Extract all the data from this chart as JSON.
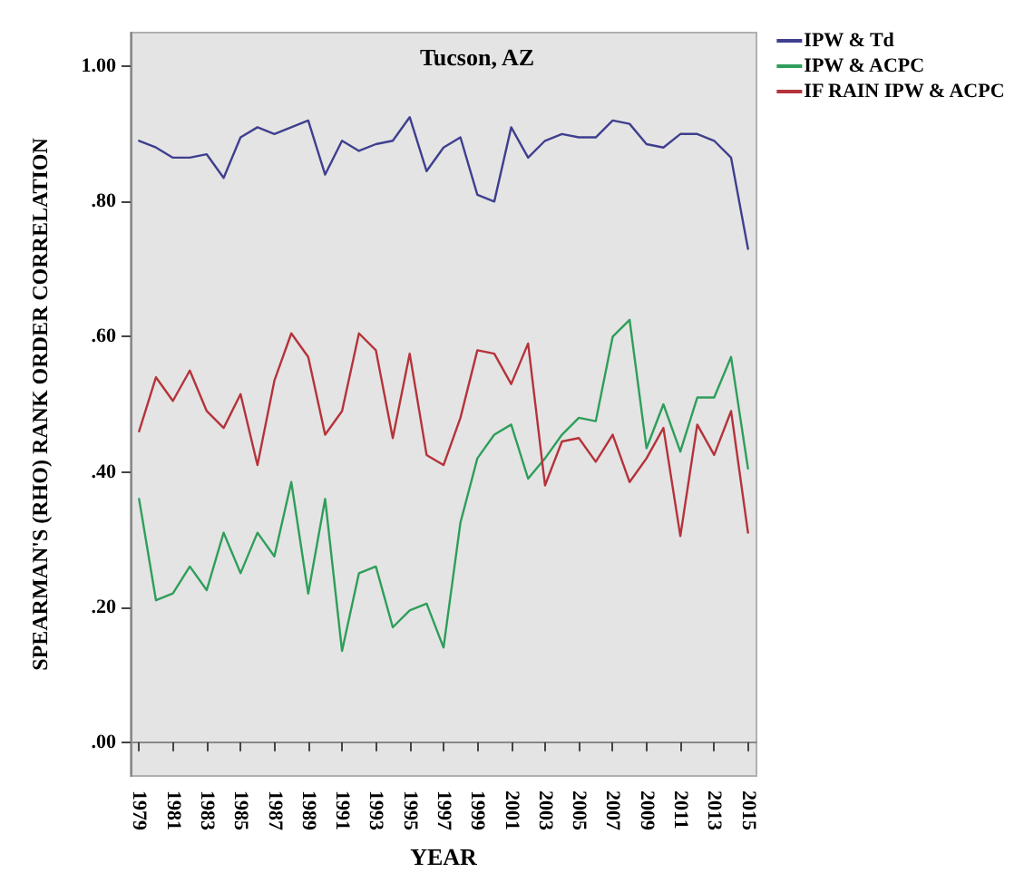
{
  "chart_data": {
    "type": "line",
    "title": "Tucson, AZ",
    "xlabel": "YEAR",
    "ylabel": "SPEARMAN'S (RHO) RANK ORDER CORRELATION",
    "categories": [
      "1979",
      null,
      "1981",
      null,
      "1983",
      null,
      "1985",
      null,
      "1987",
      null,
      "1989",
      null,
      "1991",
      null,
      "1993",
      null,
      "1995",
      null,
      "1997",
      null,
      "1999",
      null,
      "2001",
      null,
      "2003",
      null,
      "2005",
      null,
      "2007",
      null,
      "2009",
      null,
      "2011",
      null,
      "2013",
      null,
      "2015"
    ],
    "series": [
      {
        "name": "IPW & Td",
        "color": "#3f3f8f",
        "values": [
          0.89,
          0.88,
          0.865,
          0.865,
          0.87,
          0.835,
          0.895,
          0.91,
          0.9,
          0.91,
          0.92,
          0.84,
          0.89,
          0.875,
          0.885,
          0.89,
          0.925,
          0.845,
          0.88,
          0.895,
          0.81,
          0.8,
          0.91,
          0.865,
          0.89,
          0.9,
          0.895,
          0.895,
          0.92,
          0.915,
          0.885,
          0.88,
          0.9,
          0.9,
          0.89,
          0.865,
          0.73
        ]
      },
      {
        "name": "IPW & ACPC",
        "color": "#2e9e5a",
        "values": [
          0.36,
          0.21,
          0.22,
          0.26,
          0.225,
          0.31,
          0.25,
          0.31,
          0.275,
          0.385,
          0.22,
          0.36,
          0.135,
          0.25,
          0.26,
          0.17,
          0.195,
          0.205,
          0.14,
          0.325,
          0.42,
          0.455,
          0.47,
          0.39,
          0.42,
          0.455,
          0.48,
          0.475,
          0.6,
          0.625,
          0.435,
          0.5,
          0.43,
          0.51,
          0.51,
          0.57,
          0.405
        ]
      },
      {
        "name": "IF RAIN IPW & ACPC",
        "color": "#b5333a",
        "values": [
          0.46,
          0.54,
          0.505,
          0.55,
          0.49,
          0.465,
          0.515,
          0.41,
          0.535,
          0.605,
          0.57,
          0.455,
          0.49,
          0.605,
          0.58,
          0.45,
          0.575,
          0.425,
          0.41,
          0.48,
          0.58,
          0.575,
          0.53,
          0.59,
          0.38,
          0.445,
          0.45,
          0.415,
          0.455,
          0.385,
          0.42,
          0.465,
          0.305,
          0.47,
          0.425,
          0.49,
          0.31
        ]
      }
    ],
    "ylim": [
      -0.05,
      1.05
    ],
    "yticks": [
      {
        "value": 0,
        "label": ".00"
      },
      {
        "value": 0.2,
        "label": ".20"
      },
      {
        "value": 0.4,
        "label": ".40"
      },
      {
        "value": 0.6,
        "label": ".60"
      },
      {
        "value": 0.8,
        "label": ".80"
      },
      {
        "value": 1,
        "label": "1.00"
      }
    ],
    "legend": "top right",
    "marker": "none",
    "line_style": "solid"
  }
}
